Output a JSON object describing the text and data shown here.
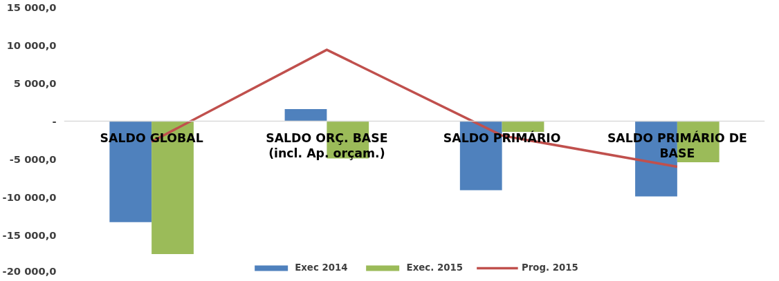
{
  "chart_data": {
    "type": "bar",
    "categories": [
      "SALDO GLOBAL",
      "SALDO ORÇ. BASE (incl. Ap. orçam.)",
      "SALDO PRIMÁRIO",
      "SALDO PRIMÁRIO DE BASE"
    ],
    "series": [
      {
        "name": "Exec 2014",
        "color": "#4f81bd",
        "values": [
          -13300,
          1600,
          -9100,
          -9900
        ]
      },
      {
        "name": "Exec. 2015",
        "color": "#9bbb59",
        "values": [
          -17500,
          -4900,
          -1400,
          -5400
        ]
      },
      {
        "name": "Prog. 2015",
        "type": "line",
        "color": "#c0504d",
        "values": [
          -2700,
          9400,
          -1900,
          -6000
        ]
      }
    ],
    "ylim": [
      -20000,
      15000
    ],
    "yticks": [
      {
        "value": 15000,
        "label": "15 000,0"
      },
      {
        "value": 10000,
        "label": "10 000,0"
      },
      {
        "value": 5000,
        "label": "5 000,0"
      },
      {
        "value": 0,
        "label": "-"
      },
      {
        "value": -5000,
        "label": "-5 000,0"
      },
      {
        "value": -10000,
        "label": "-10 000,0"
      },
      {
        "value": -15000,
        "label": "-15 000,0"
      },
      {
        "value": -20000,
        "label": "-20 000,0"
      }
    ],
    "legend": "bottom",
    "line_style": "solid"
  }
}
